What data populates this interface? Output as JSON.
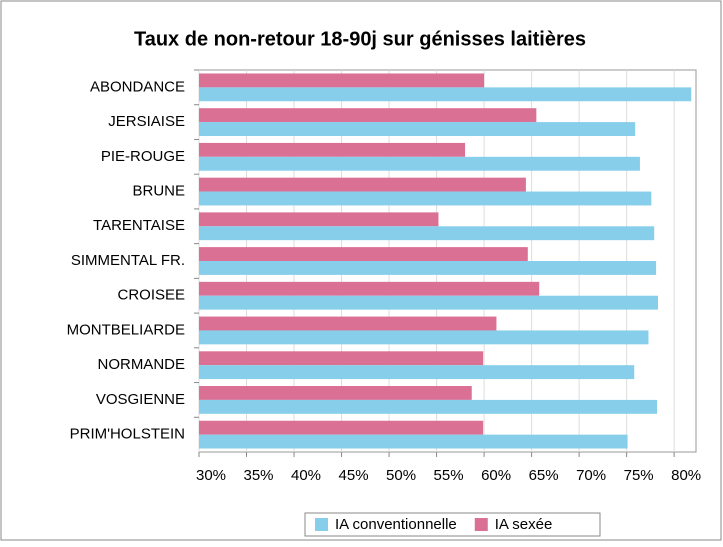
{
  "chart_data": {
    "type": "bar",
    "orientation": "horizontal",
    "title": "Taux de non-retour 18-90j sur génisses laitières",
    "categories": [
      "ABONDANCE",
      "JERSIAISE",
      "PIE-ROUGE",
      "BRUNE",
      "TARENTAISE",
      "SIMMENTAL FR.",
      "CROISEE",
      "MONTBELIARDE",
      "NORMANDE",
      "VOSGIENNE",
      "PRIM'HOLSTEIN"
    ],
    "series": [
      {
        "name": "IA sexée",
        "color": "#db7095",
        "values": [
          60.0,
          65.5,
          58.0,
          64.4,
          55.2,
          64.6,
          65.8,
          61.3,
          59.9,
          58.7,
          59.9
        ]
      },
      {
        "name": "IA conventionnelle",
        "color": "#87ceeb",
        "values": [
          81.8,
          75.9,
          76.4,
          77.6,
          77.9,
          78.1,
          78.3,
          77.3,
          75.8,
          78.2,
          75.1
        ]
      }
    ],
    "legend_order": [
      1,
      0
    ],
    "xlim": [
      30,
      82.3
    ],
    "xticks": [
      {
        "value": 30,
        "label": "30%"
      },
      {
        "value": 35,
        "label": "35%"
      },
      {
        "value": 40,
        "label": "40%"
      },
      {
        "value": 45,
        "label": "45%"
      },
      {
        "value": 50,
        "label": "50%"
      },
      {
        "value": 55,
        "label": "55%"
      },
      {
        "value": 60,
        "label": "60%"
      },
      {
        "value": 65,
        "label": "65%"
      },
      {
        "value": 70,
        "label": "70%"
      },
      {
        "value": 75,
        "label": "75%"
      },
      {
        "value": 80,
        "label": "80%"
      }
    ],
    "grid": true
  }
}
